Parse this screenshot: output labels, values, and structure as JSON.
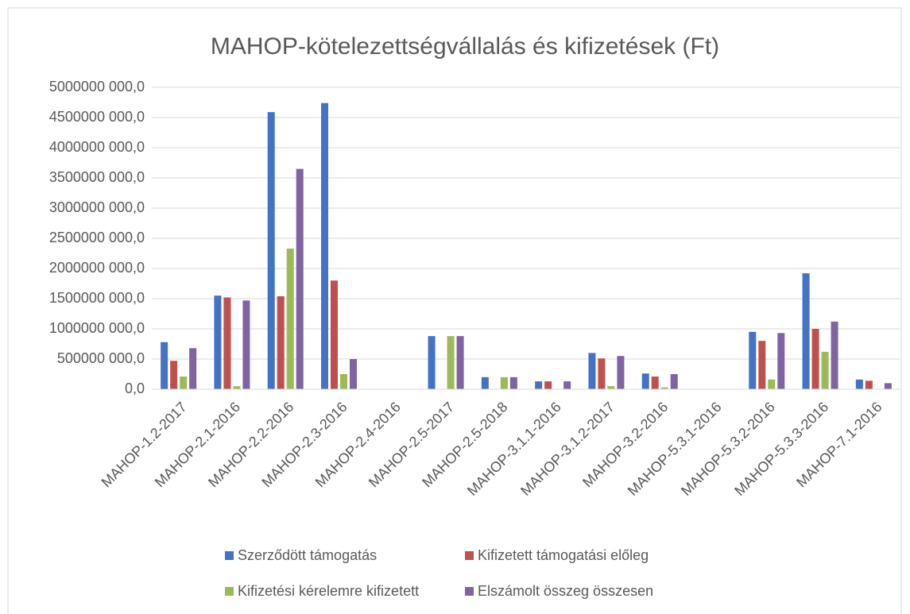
{
  "chart_data": {
    "type": "bar",
    "title": "MAHOP-kötelezettségvállalás és kifizetések (Ft)",
    "categories": [
      "MAHOP-1.2-2017",
      "MAHOP-2.1-2016",
      "MAHOP-2.2-2016",
      "MAHOP-2.3-2016",
      "MAHOP-2.4-2016",
      "MAHOP-2.5-2017",
      "MAHOP-2.5-2018",
      "MAHOP-3.1.1-2016",
      "MAHOP-3.1.2-2017",
      "MAHOP-3.2-2016",
      "MAHOP-5.3.1-2016",
      "MAHOP-5.3.2-2016",
      "MAHOP-5.3.3-2016",
      "MAHOP-7.1-2016"
    ],
    "series": [
      {
        "name": "Szerződött támogatás",
        "color": "#4472c4",
        "values": [
          780000000,
          1550000000,
          4590000000,
          4740000000,
          0,
          880000000,
          200000000,
          130000000,
          600000000,
          260000000,
          0,
          950000000,
          1920000000,
          160000000
        ]
      },
      {
        "name": "Kifizetett támogatási előleg",
        "color": "#c0504d",
        "values": [
          470000000,
          1520000000,
          1540000000,
          1800000000,
          0,
          0,
          0,
          130000000,
          510000000,
          210000000,
          0,
          800000000,
          1000000000,
          140000000
        ]
      },
      {
        "name": "Kifizetési kérelemre kifizetett",
        "color": "#9bbb59",
        "values": [
          210000000,
          50000000,
          2330000000,
          250000000,
          0,
          880000000,
          200000000,
          0,
          50000000,
          30000000,
          0,
          160000000,
          620000000,
          0
        ]
      },
      {
        "name": "Elszámolt összeg összesen",
        "color": "#8064a2",
        "values": [
          680000000,
          1470000000,
          3650000000,
          500000000,
          0,
          880000000,
          200000000,
          130000000,
          550000000,
          250000000,
          0,
          930000000,
          1120000000,
          100000000
        ]
      }
    ],
    "ylim": [
      0,
      5000000000
    ],
    "yticks": [
      {
        "value": 0,
        "label": "0,0"
      },
      {
        "value": 500000000,
        "label": "500000 000,0"
      },
      {
        "value": 1000000000,
        "label": "1000000 000,0"
      },
      {
        "value": 1500000000,
        "label": "1500000 000,0"
      },
      {
        "value": 2000000000,
        "label": "2000000 000,0"
      },
      {
        "value": 2500000000,
        "label": "2500000 000,0"
      },
      {
        "value": 3000000000,
        "label": "3000000 000,0"
      },
      {
        "value": 3500000000,
        "label": "3500000 000,0"
      },
      {
        "value": 4000000000,
        "label": "4000000 000,0"
      },
      {
        "value": 4500000000,
        "label": "4500000 000,0"
      },
      {
        "value": 5000000000,
        "label": "5000000 000,0"
      }
    ],
    "grid": true,
    "legend": "bottom"
  }
}
